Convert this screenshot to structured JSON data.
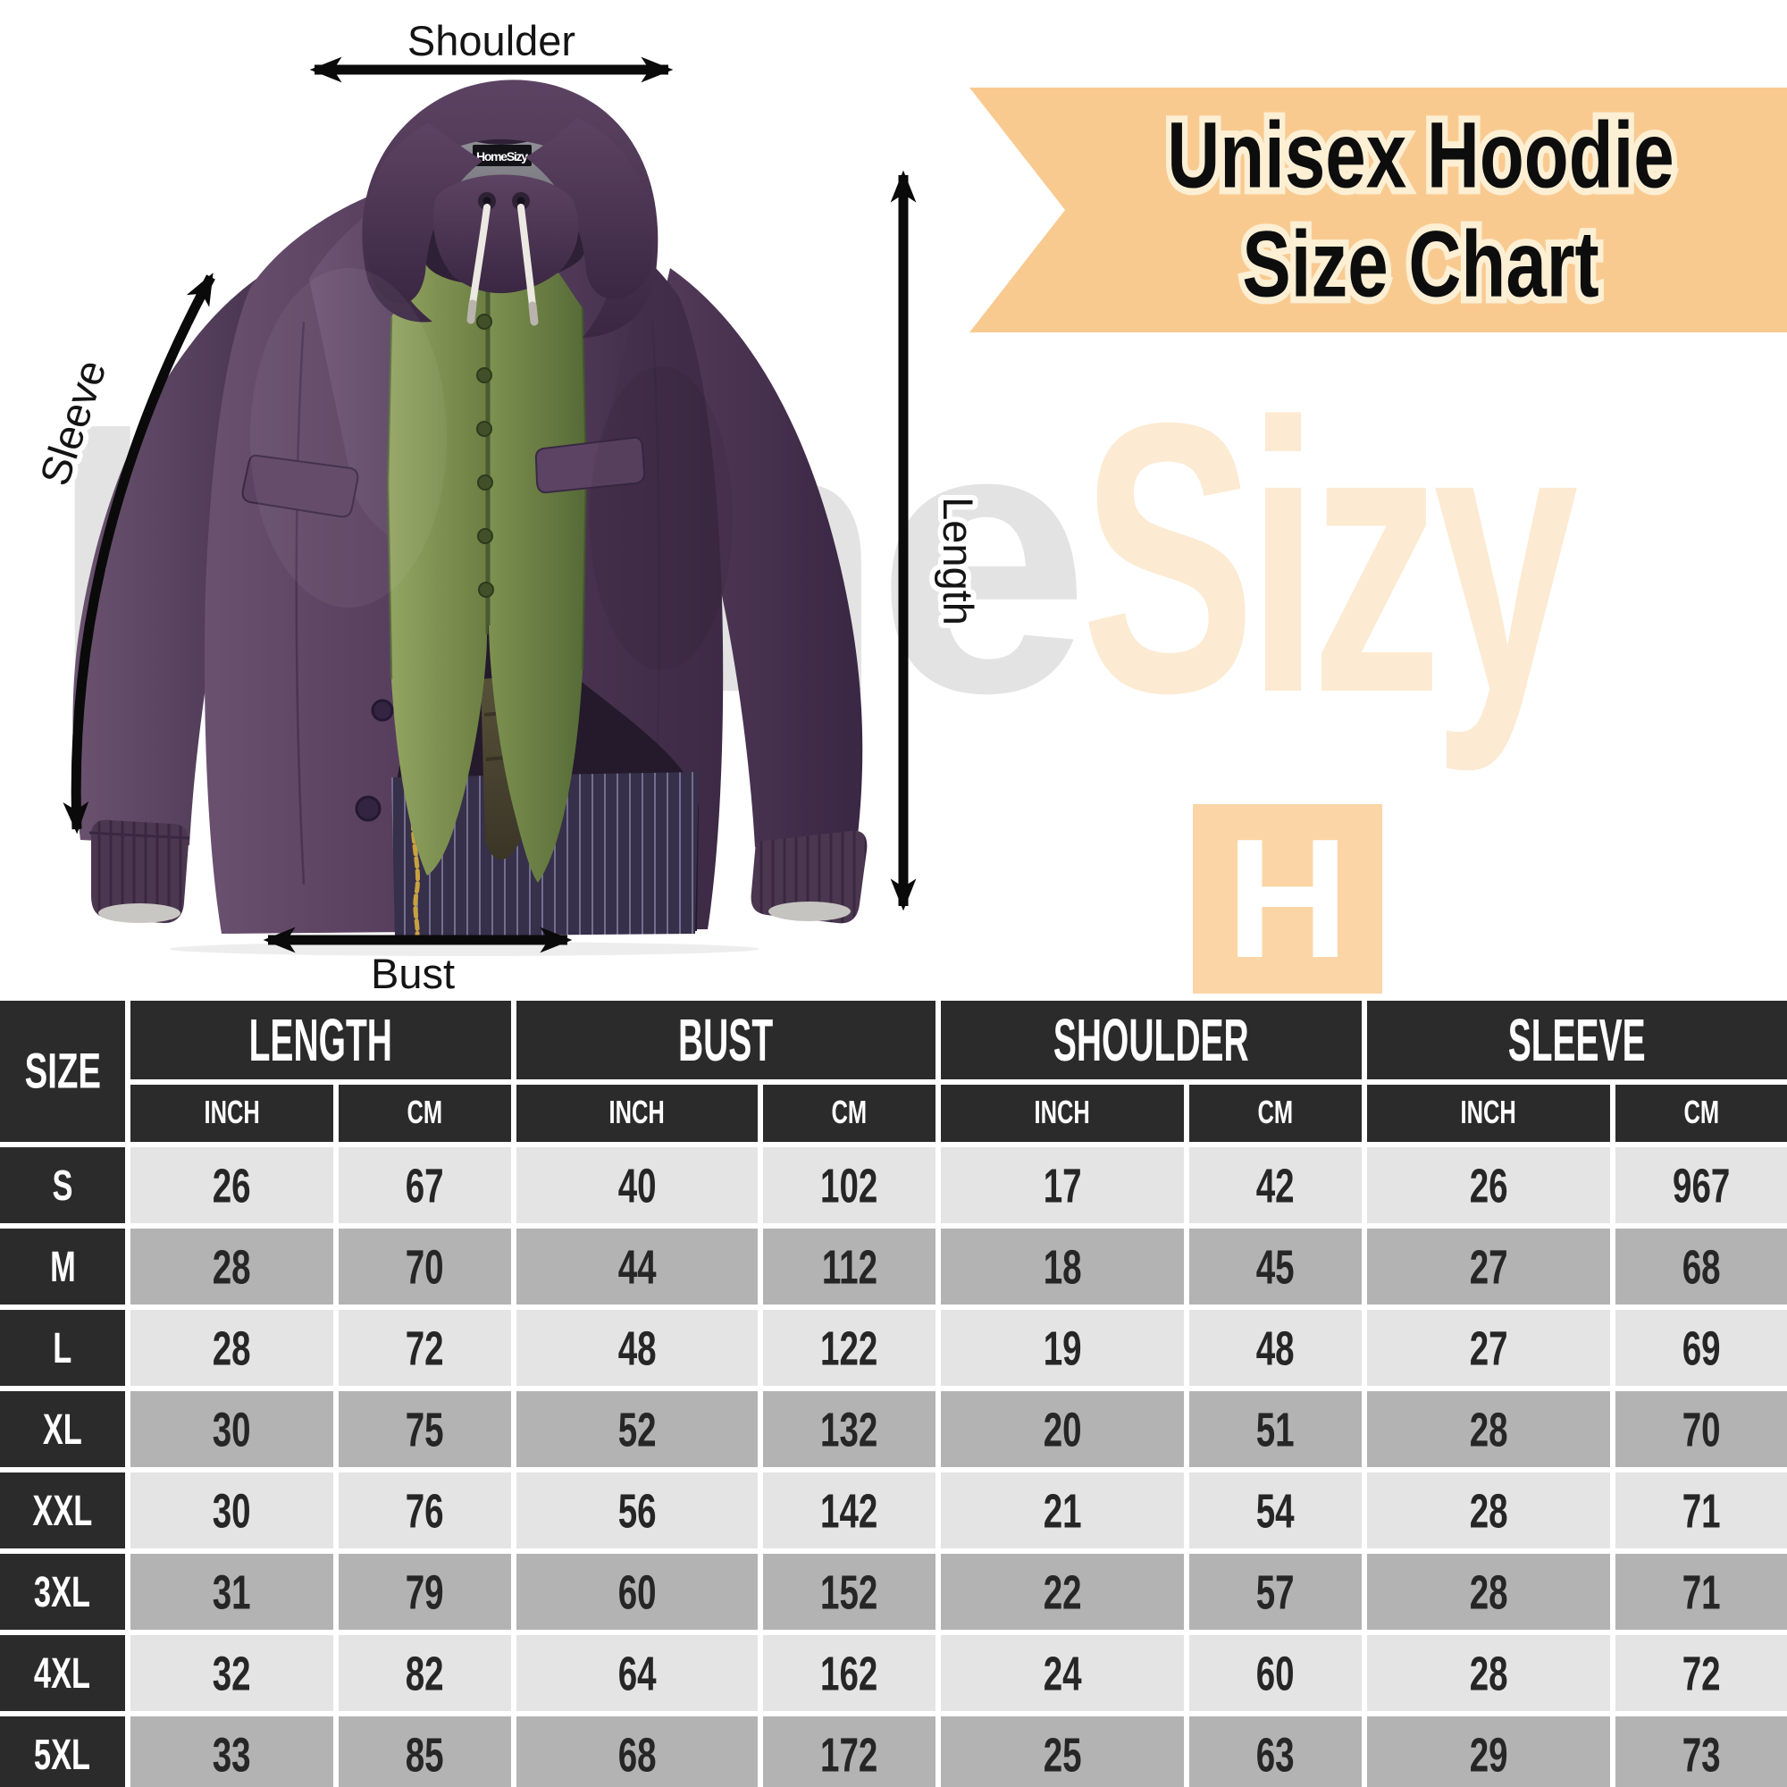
{
  "title_banner": {
    "line1": "Unisex Hoodie",
    "line2": "Size Chart"
  },
  "watermark": {
    "left_word": "Home",
    "right_word": "Sizy",
    "logo_letter": "H"
  },
  "hoodie": {
    "neck_tag": "HomeSizy"
  },
  "labels": {
    "shoulder": "Shoulder",
    "sleeve": "Sleeve",
    "length": "Length",
    "bust": "Bust"
  },
  "table": {
    "corner": "SIZE",
    "groups": [
      "LENGTH",
      "BUST",
      "SHOULDER",
      "SLEEVE"
    ],
    "units": [
      "INCH",
      "CM"
    ],
    "rows": [
      {
        "size": "S",
        "values": [
          "26",
          "67",
          "40",
          "102",
          "17",
          "42",
          "26",
          "967"
        ]
      },
      {
        "size": "M",
        "values": [
          "28",
          "70",
          "44",
          "112",
          "18",
          "45",
          "27",
          "68"
        ]
      },
      {
        "size": "L",
        "values": [
          "28",
          "72",
          "48",
          "122",
          "19",
          "48",
          "27",
          "69"
        ]
      },
      {
        "size": "XL",
        "values": [
          "30",
          "75",
          "52",
          "132",
          "20",
          "51",
          "28",
          "70"
        ]
      },
      {
        "size": "XXL",
        "values": [
          "30",
          "76",
          "56",
          "142",
          "21",
          "54",
          "28",
          "71"
        ]
      },
      {
        "size": "3XL",
        "values": [
          "31",
          "79",
          "60",
          "152",
          "22",
          "57",
          "28",
          "71"
        ]
      },
      {
        "size": "4XL",
        "values": [
          "32",
          "82",
          "64",
          "162",
          "24",
          "60",
          "28",
          "72"
        ]
      },
      {
        "size": "5XL",
        "values": [
          "33",
          "85",
          "68",
          "172",
          "25",
          "63",
          "29",
          "73"
        ]
      }
    ]
  },
  "chart_data": {
    "type": "table",
    "title": "Unisex Hoodie Size Chart",
    "columns": [
      "SIZE",
      "LENGTH (INCH)",
      "LENGTH (CM)",
      "BUST (INCH)",
      "BUST (CM)",
      "SHOULDER (INCH)",
      "SHOULDER (CM)",
      "SLEEVE (INCH)",
      "SLEEVE (CM)"
    ],
    "rows": [
      [
        "S",
        26,
        67,
        40,
        102,
        17,
        42,
        26,
        967
      ],
      [
        "M",
        28,
        70,
        44,
        112,
        18,
        45,
        27,
        68
      ],
      [
        "L",
        28,
        72,
        48,
        122,
        19,
        48,
        27,
        69
      ],
      [
        "XL",
        30,
        75,
        52,
        132,
        20,
        51,
        28,
        70
      ],
      [
        "XXL",
        30,
        76,
        56,
        142,
        21,
        54,
        28,
        71
      ],
      [
        "3XL",
        31,
        79,
        60,
        152,
        22,
        57,
        28,
        71
      ],
      [
        "4XL",
        32,
        82,
        64,
        162,
        24,
        60,
        28,
        72
      ],
      [
        "5XL",
        33,
        85,
        68,
        172,
        25,
        63,
        29,
        73
      ]
    ]
  },
  "colors": {
    "banner_bg": "#F9CA90",
    "banner_text_outline": "#FCEFD4",
    "watermark_gray": "#E3E3E3",
    "watermark_peach": "#FCEAD2",
    "logo_peach": "#FBD5A6",
    "header_bg": "#2B2B2B",
    "row_light": "#E4E4E4",
    "row_dark": "#B3B3B3",
    "hoodie_purple": "#4B3552",
    "vest_green": "#7D9150"
  }
}
